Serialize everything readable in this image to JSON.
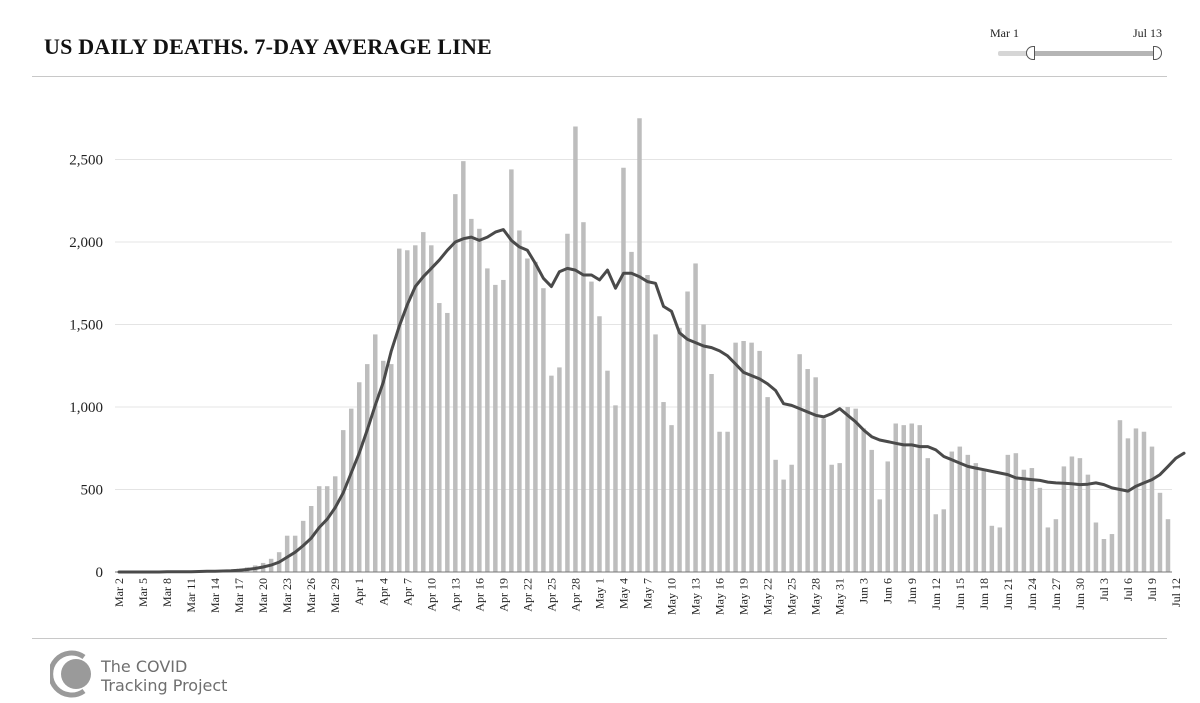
{
  "header": {
    "title": "US DAILY DEATHS. 7-DAY AVERAGE LINE"
  },
  "range_slider": {
    "start_label": "Mar 1",
    "end_label": "Jul 13"
  },
  "brand": {
    "line1": "The COVID",
    "line2": "Tracking Project"
  },
  "colors": {
    "bars": "#bdbdbd",
    "average_line": "#4a4a4a",
    "grid": "#e4e4e4"
  },
  "chart_data": {
    "type": "bar",
    "title": "US DAILY DEATHS. 7-DAY AVERAGE LINE",
    "xlabel": "",
    "ylabel": "",
    "ylim": [
      0,
      2800
    ],
    "grid": true,
    "yticks": [
      0,
      500,
      1000,
      1500,
      2000,
      2500
    ],
    "ytick_labels": [
      "0",
      "500",
      "1,000",
      "1,500",
      "2,000",
      "2,500"
    ],
    "xtick_labels": [
      "Mar 2",
      "Mar 5",
      "Mar 8",
      "Mar 11",
      "Mar 14",
      "Mar 17",
      "Mar 20",
      "Mar 23",
      "Mar 26",
      "Mar 29",
      "Apr 1",
      "Apr 4",
      "Apr 7",
      "Apr 10",
      "Apr 13",
      "Apr 16",
      "Apr 19",
      "Apr 22",
      "Apr 25",
      "Apr 28",
      "May 1",
      "May 4",
      "May 7",
      "May 10",
      "May 13",
      "May 16",
      "May 19",
      "May 22",
      "May 25",
      "May 28",
      "May 31",
      "Jun 3",
      "Jun 6",
      "Jun 9",
      "Jun 12",
      "Jun 15",
      "Jun 18",
      "Jun 21",
      "Jun 24",
      "Jun 27",
      "Jun 30",
      "Jul 3",
      "Jul 6",
      "Jul 9",
      "Jul 12"
    ],
    "xtick_interval": 3,
    "start_date": "Mar 2",
    "series": [
      {
        "name": "Daily deaths",
        "kind": "bar",
        "values": [
          0,
          0,
          0,
          0,
          0,
          1,
          2,
          2,
          3,
          4,
          5,
          6,
          7,
          10,
          15,
          20,
          28,
          40,
          55,
          80,
          120,
          220,
          220,
          310,
          400,
          520,
          520,
          580,
          860,
          990,
          1150,
          1260,
          1440,
          1280,
          1260,
          1960,
          1950,
          1980,
          2060,
          1980,
          1630,
          1570,
          2290,
          2490,
          2140,
          2080,
          1840,
          1740,
          1770,
          2440,
          2070,
          1900,
          1880,
          1720,
          1190,
          1240,
          2050,
          2700,
          2120,
          1760,
          1550,
          1220,
          1010,
          2450,
          1940,
          2750,
          1800,
          1440,
          1030,
          890,
          1480,
          1700,
          1870,
          1500,
          1200,
          850,
          850,
          1390,
          1400,
          1390,
          1340,
          1060,
          680,
          560,
          650,
          1320,
          1230,
          1180,
          930,
          650,
          660,
          1000,
          990,
          870,
          740,
          440,
          670,
          900,
          890,
          900,
          890,
          690,
          350,
          380,
          730,
          760,
          710,
          660,
          620,
          280,
          270,
          710,
          720,
          620,
          630,
          510,
          270,
          320,
          640,
          700,
          690,
          590,
          300,
          200,
          230,
          920,
          810,
          870,
          850,
          760,
          480,
          320
        ]
      },
      {
        "name": "7-day average",
        "kind": "line",
        "values": [
          0,
          0,
          0,
          0,
          0,
          0,
          1,
          1,
          2,
          2,
          3,
          4,
          5,
          6,
          8,
          11,
          15,
          21,
          30,
          42,
          60,
          90,
          120,
          160,
          205,
          270,
          320,
          390,
          480,
          600,
          720,
          860,
          1010,
          1150,
          1340,
          1490,
          1620,
          1730,
          1790,
          1840,
          1890,
          1950,
          2000,
          2020,
          2030,
          2010,
          2030,
          2060,
          2075,
          2010,
          1970,
          1950,
          1870,
          1780,
          1730,
          1820,
          1840,
          1830,
          1800,
          1800,
          1770,
          1830,
          1720,
          1810,
          1810,
          1790,
          1760,
          1750,
          1610,
          1580,
          1450,
          1410,
          1390,
          1370,
          1360,
          1340,
          1310,
          1260,
          1210,
          1190,
          1170,
          1140,
          1100,
          1020,
          1010,
          990,
          970,
          950,
          940,
          960,
          990,
          950,
          910,
          860,
          820,
          800,
          790,
          780,
          770,
          770,
          760,
          760,
          740,
          700,
          680,
          660,
          640,
          630,
          620,
          610,
          600,
          590,
          570,
          565,
          560,
          555,
          545,
          540,
          538,
          535,
          530,
          532,
          540,
          530,
          510,
          500,
          490,
          520,
          540,
          560,
          590,
          640,
          690,
          720
        ]
      }
    ]
  }
}
